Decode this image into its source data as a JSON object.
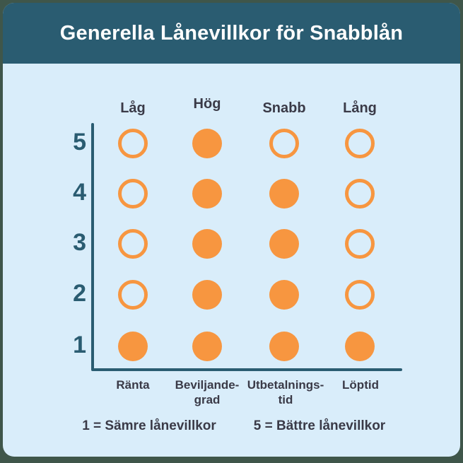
{
  "header": {
    "title": "Generella Lånevillkor för Snabblån"
  },
  "chart_data": {
    "type": "dot-matrix",
    "title": "Generella Lånevillkor för Snabblån",
    "column_headers": [
      "Låg",
      "Hög",
      "Snabb",
      "Lång"
    ],
    "categories": [
      "Ränta",
      "Beviljandegrad",
      "Utbetalningstid",
      "Löptid"
    ],
    "category_lines": [
      [
        "Ränta"
      ],
      [
        "Beviljande-",
        "grad"
      ],
      [
        "Utbetalnings-",
        "tid"
      ],
      [
        "Löptid"
      ]
    ],
    "values": [
      1,
      5,
      4,
      1
    ],
    "y_ticks": [
      "5",
      "4",
      "3",
      "2",
      "1"
    ],
    "ylim": [
      1,
      5
    ],
    "fill_matrix": [
      [
        false,
        true,
        false,
        false
      ],
      [
        false,
        true,
        true,
        false
      ],
      [
        false,
        true,
        true,
        false
      ],
      [
        false,
        true,
        true,
        false
      ],
      [
        true,
        true,
        true,
        true
      ]
    ],
    "legend": [
      "1 = Sämre lånevillkor",
      "5 = Bättre lånevillkor"
    ],
    "legend_position": "bottom",
    "grid": false,
    "colors": {
      "dot": "#f79640",
      "axis": "#2a5c71",
      "header_bg": "#2a5c71",
      "card_bg": "#d9edfa",
      "frame": "#3f564a",
      "label_text": "#3a3a47",
      "title_text": "#ffffff"
    }
  }
}
